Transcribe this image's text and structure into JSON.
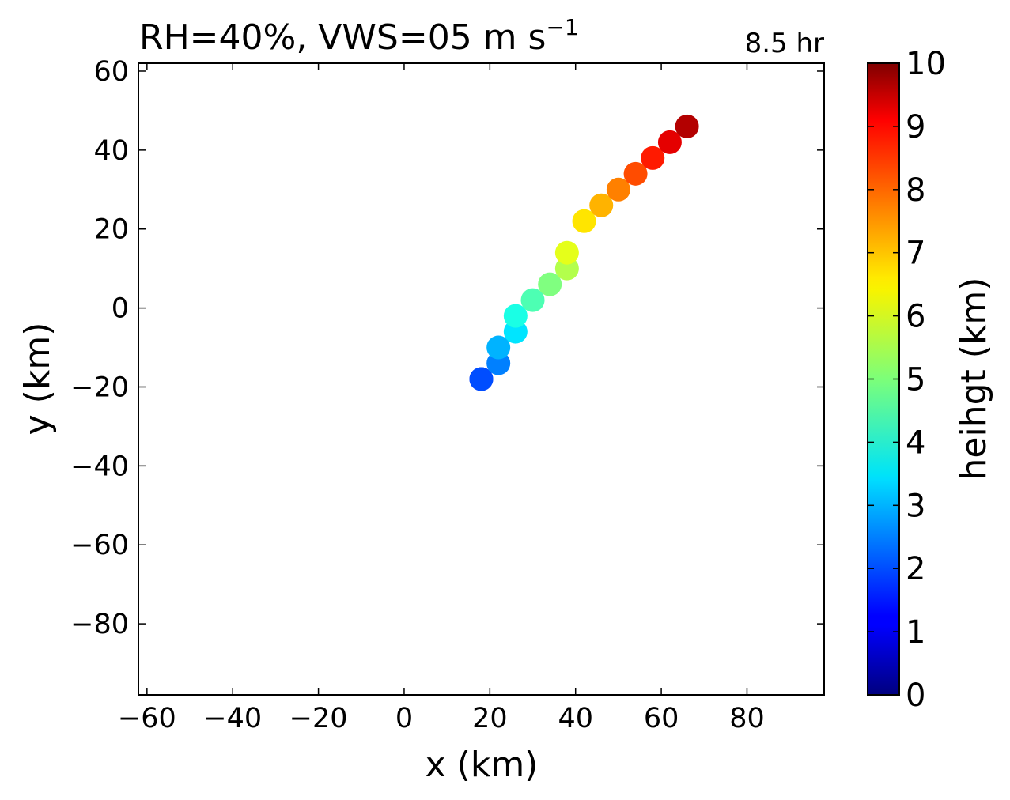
{
  "chart_data": {
    "type": "scatter",
    "title": "RH=40%, VWS=05 m s",
    "title_superscript": "−1",
    "time_label": "8.5 hr",
    "time_label_color": "#0000ff",
    "xlabel": "x (km)",
    "ylabel": "y (km)",
    "xlim": [
      -62,
      98
    ],
    "ylim": [
      -98,
      62
    ],
    "xticks": [
      -60,
      -40,
      -20,
      0,
      20,
      40,
      60,
      80
    ],
    "xtick_labels": [
      "−60",
      "−40",
      "−20",
      "0",
      "20",
      "40",
      "60",
      "80"
    ],
    "yticks": [
      60,
      40,
      20,
      0,
      -20,
      -40,
      -60,
      -80
    ],
    "ytick_labels": [
      "60",
      "40",
      "20",
      "0",
      "−20",
      "−40",
      "−60",
      "−80"
    ],
    "grid": false,
    "colormap": "jet",
    "colorbar": {
      "label": "heihgt (km)",
      "range": [
        0,
        10
      ],
      "ticks": [
        0,
        1,
        2,
        3,
        4,
        5,
        6,
        7,
        8,
        9,
        10
      ],
      "tick_labels": [
        "0",
        "1",
        "2",
        "3",
        "4",
        "5",
        "6",
        "7",
        "8",
        "9",
        "10"
      ]
    },
    "points": [
      {
        "x": 18,
        "y": -18,
        "height": 1.5
      },
      {
        "x": 18,
        "y": -18,
        "height": 2.0
      },
      {
        "x": 22,
        "y": -14,
        "height": 2.5
      },
      {
        "x": 22,
        "y": -10,
        "height": 3.0
      },
      {
        "x": 26,
        "y": -6,
        "height": 3.5
      },
      {
        "x": 26,
        "y": -2,
        "height": 4.0
      },
      {
        "x": 30,
        "y": 2,
        "height": 4.5
      },
      {
        "x": 34,
        "y": 6,
        "height": 5.0
      },
      {
        "x": 38,
        "y": 10,
        "height": 5.5
      },
      {
        "x": 38,
        "y": 14,
        "height": 6.0
      },
      {
        "x": 42,
        "y": 22,
        "height": 6.5
      },
      {
        "x": 46,
        "y": 26,
        "height": 7.0
      },
      {
        "x": 50,
        "y": 30,
        "height": 7.5
      },
      {
        "x": 54,
        "y": 34,
        "height": 8.0
      },
      {
        "x": 58,
        "y": 38,
        "height": 8.5
      },
      {
        "x": 62,
        "y": 42,
        "height": 9.0
      },
      {
        "x": 66,
        "y": 46,
        "height": 9.5
      }
    ]
  }
}
